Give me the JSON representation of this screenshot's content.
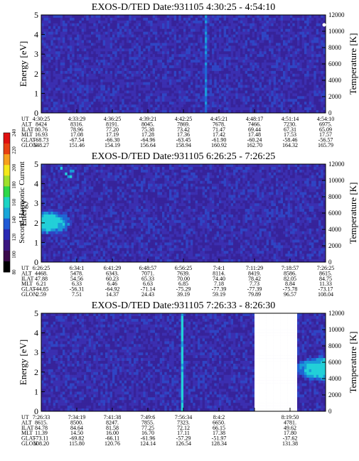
{
  "chart_data": [
    {
      "type": "heatmap",
      "title": "EXOS-D/TED   Date:931105  4:30:25 - 4:54:10",
      "ylabel": "Energy [eV]",
      "y2label": "Temperature [K]",
      "ylim": [
        0,
        5
      ],
      "y2lim": [
        0,
        12000
      ],
      "yticks": [
        "0",
        "1",
        "2",
        "3",
        "4",
        "5"
      ],
      "y2ticks": [
        "0",
        "2000",
        "4000",
        "6000",
        "8000",
        "10000",
        "12000"
      ],
      "row_labels": [
        "UT",
        "ALT",
        "ILAT",
        "MLT",
        "GLAT",
        "GLON"
      ],
      "columns": [
        [
          "4:30:25",
          "8424",
          "80.76",
          "16.93",
          "-68.73",
          "148.27"
        ],
        [
          "4:33:29",
          "8316.",
          "78.96",
          "17.08",
          "-67.54",
          "151.46"
        ],
        [
          "4:36:25",
          "8191.",
          "77.20",
          "17.19",
          "-66.30",
          "154.19"
        ],
        [
          "4:39:21",
          "8045.",
          "75.38",
          "17.28",
          "-64.96",
          "156.64"
        ],
        [
          "4:42:25",
          "7869.",
          "73.42",
          "17.36",
          "-63.45",
          "158.94"
        ],
        [
          "4:45:21",
          "7678.",
          "71.47",
          "17.42",
          "-61.90",
          "160.92"
        ],
        [
          "4:48:17",
          "7466.",
          "69.44",
          "17.48",
          "-60.24",
          "162.70"
        ],
        [
          "4:51:14",
          "7230.",
          "67.31",
          "17.53",
          "-58.46",
          "164.32"
        ],
        [
          "4:54:10",
          "6975.",
          "65.09",
          "17.57",
          "-56.57",
          "165.79"
        ]
      ]
    },
    {
      "type": "heatmap",
      "title": "EXOS-D/TED   Date:931105  6:26:25 - 7:26:25",
      "ylabel": "Energy",
      "y2label": "Temperature [K]",
      "ylim": [
        0,
        5
      ],
      "y2lim": [
        0,
        12000
      ],
      "yticks": [
        "0",
        "1",
        "2",
        "3",
        "4",
        "5"
      ],
      "y2ticks": [
        "0",
        "2000",
        "4000",
        "6000",
        "8000",
        "10000",
        "12000"
      ],
      "row_labels": [
        "UT",
        "ALT",
        "ILAT",
        "MLT",
        "GLAT",
        "GLON"
      ],
      "columns": [
        [
          "6:26:25",
          "4468.",
          "47.88",
          "6.21",
          "-44.85",
          "2.59"
        ],
        [
          "6:34:1",
          "5478.",
          "54.56",
          "6.33",
          "-56.31",
          "7.51"
        ],
        [
          "6:41:29",
          "6343.",
          "60.23",
          "6.46",
          "-64.92",
          "14.37"
        ],
        [
          "6:48:57",
          "7071.",
          "65.33",
          "6.63",
          "-71.14",
          "24.43"
        ],
        [
          "6:56:25",
          "7639.",
          "70.00",
          "6.85",
          "-75.29",
          "39.19"
        ],
        [
          "7:4:1",
          "8114.",
          "74.40",
          "7.18",
          "-77.39",
          "59.19"
        ],
        [
          "7:11:29",
          "8419.",
          "78.42",
          "7.73",
          "-77.39",
          "79.89"
        ],
        [
          "7:18:57",
          "8586.",
          "82.05",
          "8.84",
          "-75.78",
          "96.57"
        ],
        [
          "7:26:25",
          "8615.",
          "84.75",
          "11.33",
          "-73.17",
          "108.04"
        ]
      ]
    },
    {
      "type": "heatmap",
      "title": "EXOS-D/TED   Date:931105  7:26:33 - 8:26:30",
      "ylabel": "Energy [eV]",
      "y2label": "Temperature [K]",
      "ylim": [
        0,
        5
      ],
      "y2lim": [
        0,
        12000
      ],
      "yticks": [
        "0",
        "1",
        "2",
        "3",
        "4",
        "5"
      ],
      "y2ticks": [
        "0",
        "2000",
        "4000",
        "6000",
        "8000",
        "10000",
        "12000"
      ],
      "row_labels": [
        "UT",
        "ALT",
        "ILAT",
        "MLT",
        "GLAT",
        "GLON"
      ],
      "columns": [
        [
          "7:26:33",
          "8615.",
          "84.78",
          "11.39",
          "-73.11",
          "108.20"
        ],
        [
          "7:34:19",
          "8500.",
          "84.64",
          "14.50",
          "-69.82",
          "115.80"
        ],
        [
          "7:41:38",
          "8247.",
          "81.58",
          "16.00",
          "-66.11",
          "120.76"
        ],
        [
          "7:49:6",
          "7855.",
          "77.25",
          "16.70",
          "-61.96",
          "124.14"
        ],
        [
          "7:56:34",
          "7323.",
          "72.12",
          "17.11",
          "-57.29",
          "126.54"
        ],
        [
          "8:4:2",
          "6650.",
          "66.15",
          "17.38",
          "-51.97",
          "128.34"
        ],
        [
          "",
          "",
          "",
          "",
          "",
          ""
        ],
        [
          "8:19:50",
          "4781.",
          "49.62",
          "17.80",
          "-37.62",
          "131.38"
        ],
        [
          "",
          "",
          "",
          "",
          "",
          ""
        ]
      ]
    }
  ],
  "colorbar": {
    "label": "Second Harmonic Current",
    "ticks": [
      "80",
      "100",
      "120",
      "140",
      "160",
      "180",
      "200",
      "220",
      "240"
    ],
    "colors": [
      "#000000",
      "#3a0a4a",
      "#3b1780",
      "#2a2ab4",
      "#1f5ad6",
      "#19a6d9",
      "#1cd4c4",
      "#2dd84a",
      "#9fe02c",
      "#f4e81a",
      "#f6a01e",
      "#e84012",
      "#e01010"
    ]
  }
}
